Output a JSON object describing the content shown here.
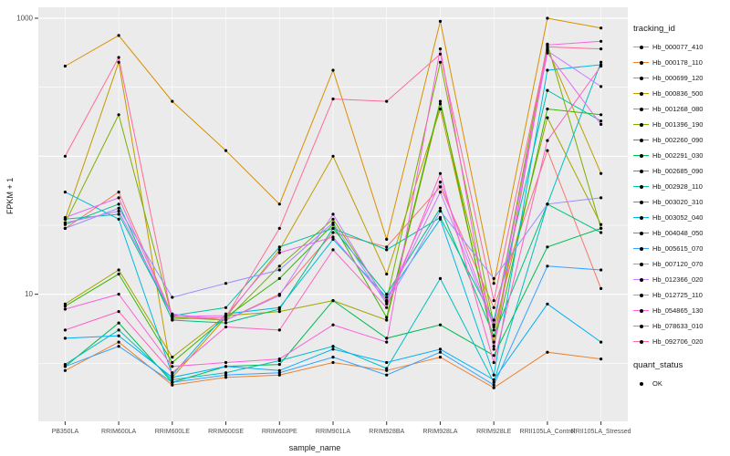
{
  "chart_data": {
    "type": "line",
    "xlabel": "sample_name",
    "ylabel": "FPKM + 1",
    "scale_y": "log10",
    "ylim": [
      1.2,
      1200
    ],
    "yticks": [
      10,
      1000
    ],
    "grid": "on",
    "legend_position": "right",
    "panel_color": "#EBEBEB",
    "categories": [
      "PB350LA",
      "RRIM600LA",
      "RRIM600LE",
      "RRIM600SE",
      "RRIM600PE",
      "RRIM901LA",
      "RRIM928BA",
      "RRIM928LA",
      "RRIM928LE",
      "RRII105LA_Control",
      "RRII105LA_Stressed"
    ],
    "legend_title": "tracking_id",
    "quant_legend_title": "quant_status",
    "quant_items": [
      {
        "label": "OK",
        "marker": "point",
        "color": "#000000"
      }
    ],
    "series": [
      {
        "name": "Hb_000077_410",
        "color": "#F8766D",
        "values": [
          30,
          55,
          7,
          6.5,
          10,
          28,
          22,
          60,
          8,
          110,
          11
        ]
      },
      {
        "name": "Hb_000178_110",
        "color": "#EA8331",
        "values": [
          2.8,
          4.5,
          2.2,
          2.5,
          2.6,
          3.2,
          2.8,
          3.5,
          2.1,
          3.8,
          3.4
        ]
      },
      {
        "name": "Hb_000699_120",
        "color": "#D89000",
        "values": [
          450,
          750,
          250,
          110,
          45,
          420,
          25,
          950,
          12,
          1000,
          850
        ]
      },
      {
        "name": "Hb_000836_500",
        "color": "#C09B00",
        "values": [
          35,
          480,
          2.5,
          6.8,
          21,
          100,
          14,
          220,
          4.5,
          600,
          75
        ]
      },
      {
        "name": "Hb_001268_080",
        "color": "#A3A500",
        "values": [
          8.5,
          15,
          3.5,
          7,
          7.5,
          9,
          6.5,
          240,
          5.5,
          190,
          32
        ]
      },
      {
        "name": "Hb_001396_190",
        "color": "#7CAE00",
        "values": [
          33,
          200,
          6.8,
          6.5,
          16,
          35,
          9,
          480,
          6,
          650,
          30
        ]
      },
      {
        "name": "Hb_002260_090",
        "color": "#39B600",
        "values": [
          8.2,
          14,
          3.2,
          6.8,
          13,
          32,
          6.8,
          250,
          4.2,
          220,
          200
        ]
      },
      {
        "name": "Hb_002291_030",
        "color": "#00BB4E",
        "values": [
          3,
          6.2,
          2.3,
          3,
          3.1,
          9,
          4.8,
          6,
          3.6,
          22,
          30
        ]
      },
      {
        "name": "Hb_002685_090",
        "color": "#00BF7D",
        "values": [
          32,
          45,
          6.5,
          6.2,
          7.8,
          30,
          10,
          42,
          5,
          45,
          28
        ]
      },
      {
        "name": "Hb_002928_110",
        "color": "#00C1A3",
        "values": [
          35,
          38,
          7,
          8,
          22,
          30,
          21,
          36,
          6.5,
          300,
          180
        ]
      },
      {
        "name": "Hb_003020_310",
        "color": "#00BFC4",
        "values": [
          3.1,
          5.5,
          2.4,
          2.7,
          3.3,
          4.2,
          2.9,
          13,
          2.3,
          45,
          480
        ]
      },
      {
        "name": "Hb_003052_040",
        "color": "#00BAE0",
        "values": [
          55,
          35,
          2.6,
          7.2,
          8,
          25,
          9.5,
          35,
          2.6,
          420,
          460
        ]
      },
      {
        "name": "Hb_004048_050",
        "color": "#00B0F6",
        "values": [
          4.8,
          5,
          2.5,
          3,
          2.8,
          4,
          3.2,
          4,
          2.4,
          8.5,
          4.5
        ]
      },
      {
        "name": "Hb_005615_070",
        "color": "#35A2FF",
        "values": [
          3,
          4.2,
          2.3,
          2.6,
          2.7,
          3.5,
          2.6,
          3.8,
          2.2,
          16,
          15
        ]
      },
      {
        "name": "Hb_007120_070",
        "color": "#9590FF",
        "values": [
          30,
          42,
          9.5,
          12,
          15,
          33,
          8.5,
          40,
          13,
          45,
          50
        ]
      },
      {
        "name": "Hb_012366_020",
        "color": "#C77CFF",
        "values": [
          33,
          40,
          7.2,
          6.5,
          9.8,
          38,
          8.8,
          55,
          5.8,
          580,
          320
        ]
      },
      {
        "name": "Hb_012725_110",
        "color": "#E76BF3",
        "values": [
          36,
          50,
          6.9,
          7,
          20,
          26,
          9,
          65,
          6,
          560,
          170
        ]
      },
      {
        "name": "Hb_054865_130",
        "color": "#FA62DB",
        "values": [
          7.8,
          10,
          3,
          3.2,
          3.4,
          6,
          4.5,
          600,
          4,
          640,
          680
        ]
      },
      {
        "name": "Hb_078633_010",
        "color": "#FF61C2",
        "values": [
          5.5,
          7.5,
          2.7,
          5.8,
          5.5,
          21,
          8,
          75,
          3.2,
          130,
          450
        ]
      },
      {
        "name": "Hb_092706_020",
        "color": "#FF6A99",
        "values": [
          100,
          520,
          6.6,
          6.8,
          30,
          260,
          250,
          550,
          9,
          620,
          600
        ]
      }
    ]
  }
}
